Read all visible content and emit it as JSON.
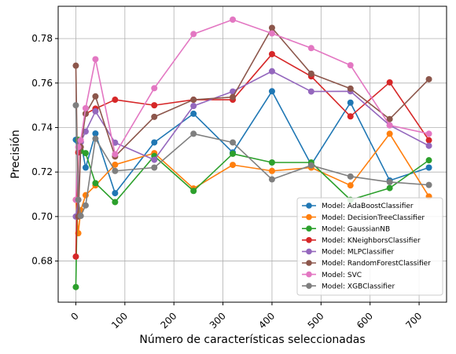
{
  "chart_data": {
    "type": "line",
    "xlabel": "Número de características seleccionadas",
    "ylabel": "Precisión",
    "xlim": [
      -36,
      756
    ],
    "ylim": [
      0.6615,
      0.7945
    ],
    "xticks": [
      0,
      100,
      200,
      300,
      400,
      500,
      600,
      700
    ],
    "xtick_labels": [
      "0",
      "100",
      "200",
      "300",
      "400",
      "500",
      "600",
      "700"
    ],
    "yticks": [
      0.68,
      0.7,
      0.72,
      0.74,
      0.76,
      0.78
    ],
    "ytick_labels": [
      "0.68",
      "0.70",
      "0.72",
      "0.74",
      "0.76",
      "0.78"
    ],
    "grid": true,
    "legend_position": "lower-right",
    "x": [
      0,
      5,
      10,
      20,
      40,
      80,
      160,
      240,
      320,
      400,
      480,
      560,
      640,
      720
    ],
    "series": [
      {
        "name": "Model: AdaBoostClassifier",
        "color": "#1f77b4",
        "values": [
          0.7345,
          0.7335,
          0.7335,
          0.722,
          0.7373,
          0.7105,
          0.7333,
          0.7462,
          0.7288,
          0.7563,
          0.7233,
          0.7512,
          0.7162,
          0.722
        ]
      },
      {
        "name": "Model: DecisionTreeClassifier",
        "color": "#ff7f0e",
        "values": [
          0.7075,
          0.6925,
          0.7028,
          0.7096,
          0.714,
          0.7233,
          0.7285,
          0.7126,
          0.7232,
          0.7205,
          0.722,
          0.714,
          0.7372,
          0.709
        ]
      },
      {
        "name": "Model: GaussianNB",
        "color": "#2ca02c",
        "values": [
          0.6683,
          0.7345,
          0.7295,
          0.7285,
          0.715,
          0.7065,
          0.7272,
          0.7115,
          0.7282,
          0.7243,
          0.7243,
          0.7075,
          0.7128,
          0.7253
        ]
      },
      {
        "name": "Model: KNeighborsClassifier",
        "color": "#d62728",
        "values": [
          0.682,
          0.7288,
          0.7335,
          0.7462,
          0.7485,
          0.7525,
          0.75,
          0.7525,
          0.7525,
          0.773,
          0.763,
          0.745,
          0.7603,
          0.7343
        ]
      },
      {
        "name": "Model: MLPClassifier",
        "color": "#9467bd",
        "values": [
          0.7,
          0.7075,
          0.7335,
          0.7382,
          0.7473,
          0.7332,
          0.7255,
          0.7497,
          0.7562,
          0.7653,
          0.7562,
          0.7563,
          0.741,
          0.7318
        ]
      },
      {
        "name": "Model: RandomForestClassifier",
        "color": "#8c564b",
        "values": [
          0.7678,
          0.7,
          0.7312,
          0.7462,
          0.754,
          0.727,
          0.7448,
          0.7525,
          0.7537,
          0.7848,
          0.7642,
          0.7575,
          0.7438,
          0.7617
        ]
      },
      {
        "name": "Model: SVC",
        "color": "#e377c2",
        "values": [
          0.7075,
          0.7312,
          0.7343,
          0.7487,
          0.7707,
          0.728,
          0.7577,
          0.782,
          0.7885,
          0.7823,
          0.7757,
          0.768,
          0.741,
          0.7372
        ]
      },
      {
        "name": "Model: XGBClassifier",
        "color": "#7f7f7f",
        "values": [
          0.75,
          0.7075,
          0.7003,
          0.705,
          0.735,
          0.7205,
          0.722,
          0.7372,
          0.7333,
          0.7167,
          0.723,
          0.718,
          0.7155,
          0.7142
        ]
      }
    ]
  }
}
